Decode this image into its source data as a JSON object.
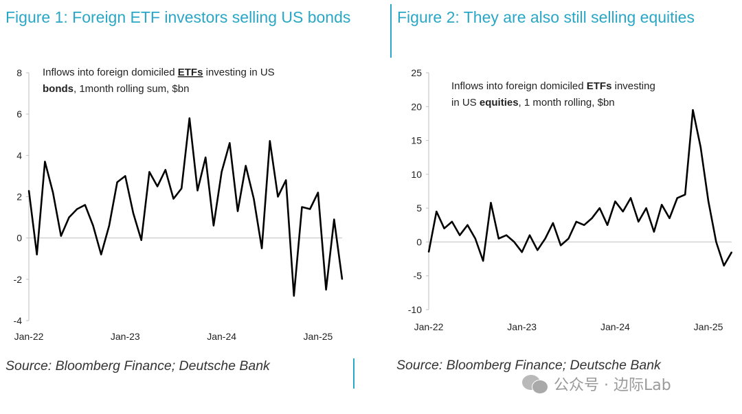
{
  "figure1": {
    "title": "Figure 1: Foreign ETF investors selling US bonds",
    "source": "Source: Bloomberg Finance; Deutsche Bank"
  },
  "figure2": {
    "title": "Figure 2: They are also still selling equities",
    "source": "Source: Bloomberg Finance; Deutsche Bank"
  },
  "watermark": {
    "icon": "wechat-icon",
    "text": "公众号 · 边际Lab"
  },
  "colors": {
    "title": "#2aa6c6",
    "line": "#000000",
    "axis": "#bfbfbf"
  },
  "chart_data": [
    {
      "type": "line",
      "title": "",
      "annotation_line1_prefix": "Inflows into foreign domiciled ",
      "annotation_line1_bold": "ETFs",
      "annotation_line1_suffix": " investing in US",
      "annotation_line2_bold": "bonds",
      "annotation_line2_suffix": ", 1month rolling sum, $bn",
      "xlabel": "",
      "ylabel": "",
      "x_ticks": [
        "Jan-22",
        "Jan-23",
        "Jan-24",
        "Jan-25"
      ],
      "y_ticks": [
        "8",
        "6",
        "4",
        "2",
        "0",
        "-2",
        "-4"
      ],
      "ylim": [
        -4,
        8
      ],
      "xlim": [
        "2022-01",
        "2025-04"
      ],
      "grid": false,
      "series": [
        {
          "x": [
            "2022-01",
            "2022-02",
            "2022-03",
            "2022-04",
            "2022-05",
            "2022-06",
            "2022-07",
            "2022-08",
            "2022-09",
            "2022-10",
            "2022-11",
            "2022-12",
            "2023-01",
            "2023-02",
            "2023-03",
            "2023-04",
            "2023-05",
            "2023-06",
            "2023-07",
            "2023-08",
            "2023-09",
            "2023-10",
            "2023-11",
            "2023-12",
            "2024-01",
            "2024-02",
            "2024-03",
            "2024-04",
            "2024-05",
            "2024-06",
            "2024-07",
            "2024-08",
            "2024-09",
            "2024-10",
            "2024-11",
            "2024-12",
            "2025-01",
            "2025-02",
            "2025-03",
            "2025-04"
          ],
          "values": [
            2.3,
            -0.8,
            3.7,
            2.2,
            0.1,
            1.0,
            1.4,
            1.6,
            0.6,
            -0.8,
            0.6,
            2.7,
            3.0,
            1.2,
            -0.1,
            3.2,
            2.5,
            3.3,
            1.9,
            2.4,
            5.8,
            2.3,
            3.9,
            0.6,
            3.2,
            4.6,
            1.3,
            3.5,
            1.9,
            -0.5,
            4.7,
            2.0,
            2.8,
            -2.8,
            1.5,
            1.4,
            2.2,
            -2.5,
            0.9,
            -2.0
          ]
        }
      ]
    },
    {
      "type": "line",
      "title": "",
      "annotation_line1_prefix": "Inflows into foreign domiciled ",
      "annotation_line1_bold": "ETFs",
      "annotation_line1_suffix": " investing",
      "annotation_line2_prefix": "in US ",
      "annotation_line2_bold": "equities",
      "annotation_line2_suffix": ",  1 month rolling, $bn",
      "xlabel": "",
      "ylabel": "",
      "x_ticks": [
        "Jan-22",
        "Jan-23",
        "Jan-24",
        "Jan-25"
      ],
      "y_ticks": [
        "25",
        "20",
        "15",
        "10",
        "5",
        "0",
        "-5",
        "-10"
      ],
      "ylim": [
        -10,
        25
      ],
      "xlim": [
        "2022-01",
        "2025-04"
      ],
      "grid": false,
      "series": [
        {
          "x": [
            "2022-01",
            "2022-02",
            "2022-03",
            "2022-04",
            "2022-05",
            "2022-06",
            "2022-07",
            "2022-08",
            "2022-09",
            "2022-10",
            "2022-11",
            "2022-12",
            "2023-01",
            "2023-02",
            "2023-03",
            "2023-04",
            "2023-05",
            "2023-06",
            "2023-07",
            "2023-08",
            "2023-09",
            "2023-10",
            "2023-11",
            "2023-12",
            "2024-01",
            "2024-02",
            "2024-03",
            "2024-04",
            "2024-05",
            "2024-06",
            "2024-07",
            "2024-08",
            "2024-09",
            "2024-10",
            "2024-11",
            "2024-12",
            "2025-01",
            "2025-02",
            "2025-03",
            "2025-04"
          ],
          "values": [
            -1.5,
            4.5,
            2.0,
            3.0,
            1.0,
            2.5,
            0.5,
            -2.8,
            5.8,
            0.5,
            1.0,
            0.0,
            -1.5,
            1.0,
            -1.2,
            0.5,
            2.8,
            -0.5,
            0.5,
            3.0,
            2.5,
            3.5,
            5.0,
            2.5,
            6.0,
            4.5,
            6.5,
            3.0,
            5.0,
            1.5,
            5.5,
            3.5,
            6.5,
            7.0,
            19.5,
            14.0,
            6.0,
            0.0,
            -3.5,
            -1.5
          ]
        }
      ]
    }
  ]
}
